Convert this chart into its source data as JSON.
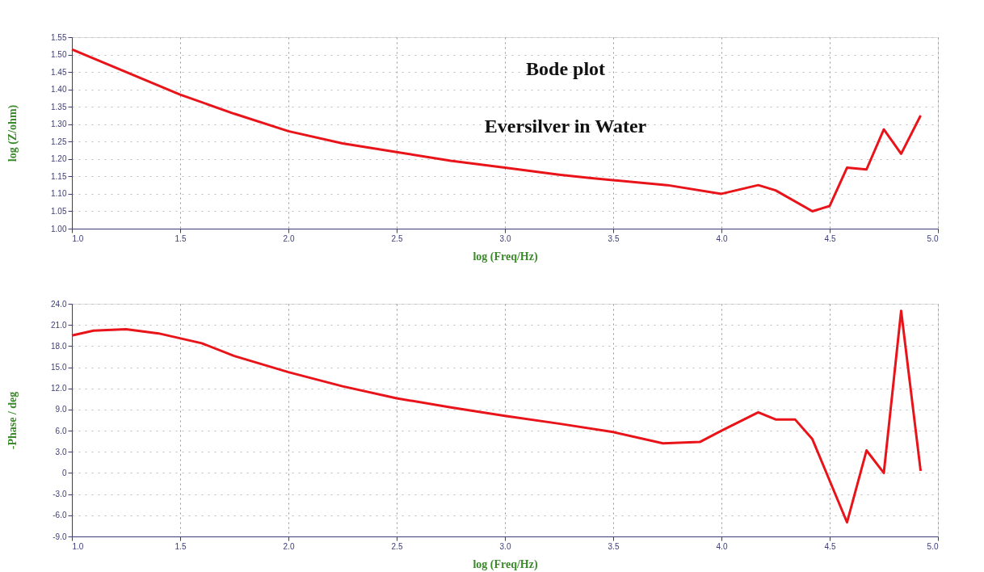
{
  "chart_data": [
    {
      "type": "line",
      "xlabel": "log (Freq/Hz)",
      "ylabel": "log (Z/ohm)",
      "annotations": [
        "Bode plot",
        "Eversilver in Water"
      ],
      "x": [
        1.0,
        1.25,
        1.5,
        1.75,
        2.0,
        2.25,
        2.5,
        2.75,
        3.0,
        3.25,
        3.4,
        3.75,
        4.0,
        4.17,
        4.25,
        4.42,
        4.5,
        4.58,
        4.67,
        4.75,
        4.83,
        4.92
      ],
      "series": [
        {
          "color": "#e8141a",
          "values": [
            1.515,
            1.45,
            1.385,
            1.33,
            1.28,
            1.245,
            1.22,
            1.195,
            1.175,
            1.155,
            1.145,
            1.125,
            1.1,
            1.125,
            1.11,
            1.05,
            1.065,
            1.175,
            1.17,
            1.285,
            1.215,
            1.325
          ]
        }
      ],
      "xlim": [
        1.0,
        5.0
      ],
      "xticks": [
        {
          "value": 1,
          "label": "1.0"
        },
        {
          "value": 1.5,
          "label": "1.5"
        },
        {
          "value": 2,
          "label": "2.0"
        },
        {
          "value": 2.5,
          "label": "2.5"
        },
        {
          "value": 3,
          "label": "3.0"
        },
        {
          "value": 3.5,
          "label": "3.5"
        },
        {
          "value": 4,
          "label": "4.0"
        },
        {
          "value": 4.5,
          "label": "4.5"
        },
        {
          "value": 5,
          "label": "5.0"
        }
      ],
      "ylim": [
        1.0,
        1.55
      ],
      "yticks": [
        {
          "value": 1,
          "label": "1.00"
        },
        1.05,
        {
          "value": 1.1,
          "label": "1.10"
        },
        1.15,
        {
          "value": 1.2,
          "label": "1.20"
        },
        1.25,
        {
          "value": 1.3,
          "label": "1.30"
        },
        1.35,
        {
          "value": 1.4,
          "label": "1.40"
        },
        1.45,
        {
          "value": 1.5,
          "label": "1.50"
        },
        1.55
      ],
      "grid": true,
      "line_style": "solid",
      "marker": "none"
    },
    {
      "type": "line",
      "xlabel": "log (Freq/Hz)",
      "ylabel": "-Phase / deg",
      "x": [
        1.0,
        1.1,
        1.25,
        1.4,
        1.6,
        1.75,
        2.0,
        2.25,
        2.5,
        2.75,
        3.0,
        3.25,
        3.5,
        3.73,
        3.9,
        4.0,
        4.17,
        4.25,
        4.34,
        4.42,
        4.58,
        4.67,
        4.75,
        4.83,
        4.92
      ],
      "series": [
        {
          "color": "#e8141a",
          "values": [
            19.5,
            20.2,
            20.4,
            19.8,
            18.4,
            16.6,
            14.3,
            12.3,
            10.6,
            9.3,
            8.1,
            7.0,
            5.8,
            4.2,
            4.4,
            6.0,
            8.6,
            7.6,
            7.6,
            4.8,
            -7.0,
            3.2,
            0.0,
            23.0,
            0.3
          ]
        }
      ],
      "xlim": [
        1.0,
        5.0
      ],
      "xticks": [
        {
          "value": 1,
          "label": "1.0"
        },
        {
          "value": 1.5,
          "label": "1.5"
        },
        {
          "value": 2,
          "label": "2.0"
        },
        {
          "value": 2.5,
          "label": "2.5"
        },
        {
          "value": 3,
          "label": "3.0"
        },
        {
          "value": 3.5,
          "label": "3.5"
        },
        {
          "value": 4,
          "label": "4.0"
        },
        {
          "value": 4.5,
          "label": "4.5"
        },
        {
          "value": 5,
          "label": "5.0"
        }
      ],
      "ylim": [
        -9.0,
        24.0
      ],
      "yticks": [
        {
          "value": -9,
          "label": "-9.0"
        },
        {
          "value": -6,
          "label": "-6.0"
        },
        {
          "value": -3,
          "label": "-3.0"
        },
        0,
        {
          "value": 3,
          "label": "3.0"
        },
        {
          "value": 6,
          "label": "6.0"
        },
        {
          "value": 9,
          "label": "9.0"
        },
        {
          "value": 12,
          "label": "12.0"
        },
        {
          "value": 15,
          "label": "15.0"
        },
        {
          "value": 18,
          "label": "18.0"
        },
        {
          "value": 21,
          "label": "21.0"
        },
        {
          "value": 24,
          "label": "24.0"
        }
      ],
      "grid": true,
      "line_style": "solid",
      "marker": "none"
    }
  ]
}
